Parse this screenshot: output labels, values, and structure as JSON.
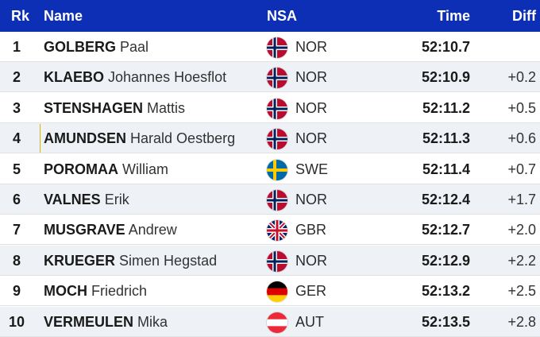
{
  "header": {
    "rank": "Rk",
    "name": "Name",
    "nsa": "NSA",
    "time": "Time",
    "diff": "Diff"
  },
  "rows": [
    {
      "rank": "1",
      "last": "GOLBERG",
      "first": "Paal",
      "nsa": "NOR",
      "flag": "norway-flag-icon",
      "time": "52:10.7",
      "diff": ""
    },
    {
      "rank": "2",
      "last": "KLAEBO",
      "first": "Johannes Hoesflot",
      "nsa": "NOR",
      "flag": "norway-flag-icon",
      "time": "52:10.9",
      "diff": "+0.2"
    },
    {
      "rank": "3",
      "last": "STENSHAGEN",
      "first": "Mattis",
      "nsa": "NOR",
      "flag": "norway-flag-icon",
      "time": "52:11.2",
      "diff": "+0.5"
    },
    {
      "rank": "4",
      "last": "AMUNDSEN",
      "first": "Harald Oestberg",
      "nsa": "NOR",
      "flag": "norway-flag-icon",
      "time": "52:11.3",
      "diff": "+0.6"
    },
    {
      "rank": "5",
      "last": "POROMAA",
      "first": "William",
      "nsa": "SWE",
      "flag": "sweden-flag-icon",
      "time": "52:11.4",
      "diff": "+0.7"
    },
    {
      "rank": "6",
      "last": "VALNES",
      "first": "Erik",
      "nsa": "NOR",
      "flag": "norway-flag-icon",
      "time": "52:12.4",
      "diff": "+1.7"
    },
    {
      "rank": "7",
      "last": "MUSGRAVE",
      "first": "Andrew",
      "nsa": "GBR",
      "flag": "uk-flag-icon",
      "time": "52:12.7",
      "diff": "+2.0"
    },
    {
      "rank": "8",
      "last": "KRUEGER",
      "first": "Simen Hegstad",
      "nsa": "NOR",
      "flag": "norway-flag-icon",
      "time": "52:12.9",
      "diff": "+2.2"
    },
    {
      "rank": "9",
      "last": "MOCH",
      "first": "Friedrich",
      "nsa": "GER",
      "flag": "germany-flag-icon",
      "time": "52:13.2",
      "diff": "+2.5"
    },
    {
      "rank": "10",
      "last": "VERMEULEN",
      "first": "Mika",
      "nsa": "AUT",
      "flag": "austria-flag-icon",
      "time": "52:13.5",
      "diff": "+2.8"
    }
  ],
  "colors": {
    "header_bg": "#0d2fb5",
    "row_alt_bg": "#eef1f6"
  }
}
